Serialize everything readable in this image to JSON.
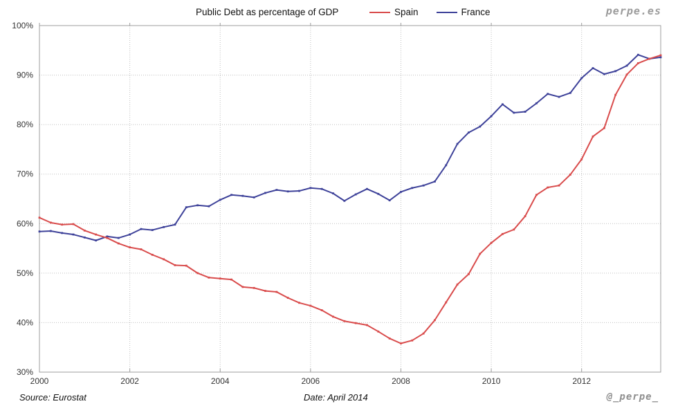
{
  "watermark": {
    "site": "perpe.es"
  },
  "footer": {
    "source": "Source: Eurostat",
    "date": "Date: April 2014",
    "handle": "@_perpe_"
  },
  "chart_data": {
    "type": "line",
    "title": "Public Debt as percentage of GDP",
    "x_unit": "year (quarterly observations)",
    "x_start": 2000,
    "x_step": 0.25,
    "axes": {
      "x_min": 2000,
      "x_max": 2013.75,
      "y_min": 30,
      "y_max": 100,
      "x_tick_values": [
        2000,
        2002,
        2004,
        2006,
        2008,
        2010,
        2012
      ],
      "x_tick_labels": [
        "2000",
        "2002",
        "2004",
        "2006",
        "2008",
        "2010",
        "2012"
      ],
      "y_tick_values": [
        30,
        40,
        50,
        60,
        70,
        80,
        90,
        100
      ],
      "y_tick_labels": [
        "30%",
        "40%",
        "50%",
        "60%",
        "70%",
        "80%",
        "90%",
        "100%"
      ],
      "grid_style": "dotted",
      "legend_position": "top"
    },
    "colors": {
      "grid": "#bfbfbf",
      "frame": "#9e9e9e",
      "tick": "#9e9e9e",
      "text": "#333333"
    },
    "series": [
      {
        "name": "Spain",
        "color": "#d94b4b",
        "values": [
          61.2,
          60.2,
          59.8,
          59.9,
          58.6,
          57.8,
          57.1,
          56.0,
          55.2,
          54.8,
          53.7,
          52.8,
          51.6,
          51.5,
          50.0,
          49.1,
          48.9,
          48.7,
          47.2,
          47.0,
          46.4,
          46.2,
          45.0,
          44.0,
          43.4,
          42.5,
          41.2,
          40.3,
          39.9,
          39.5,
          38.2,
          36.8,
          35.8,
          36.4,
          37.8,
          40.5,
          44.1,
          47.7,
          49.8,
          53.9,
          56.1,
          57.9,
          58.8,
          61.5,
          65.8,
          67.3,
          67.7,
          69.9,
          73.0,
          77.6,
          79.3,
          86.0,
          90.1,
          92.4,
          93.3,
          94.0
        ]
      },
      {
        "name": "France",
        "color": "#3d4199",
        "values": [
          58.4,
          58.5,
          58.1,
          57.8,
          57.2,
          56.6,
          57.4,
          57.1,
          57.8,
          58.9,
          58.7,
          59.3,
          59.8,
          63.3,
          63.7,
          63.5,
          64.8,
          65.8,
          65.6,
          65.3,
          66.2,
          66.8,
          66.5,
          66.6,
          67.2,
          67.0,
          66.1,
          64.6,
          65.9,
          67.0,
          66.0,
          64.7,
          66.4,
          67.2,
          67.7,
          68.5,
          71.8,
          76.1,
          78.4,
          79.6,
          81.7,
          84.1,
          82.4,
          82.6,
          84.3,
          86.2,
          85.6,
          86.4,
          89.4,
          91.4,
          90.2,
          90.8,
          91.9,
          94.1,
          93.3,
          93.6
        ]
      }
    ]
  }
}
